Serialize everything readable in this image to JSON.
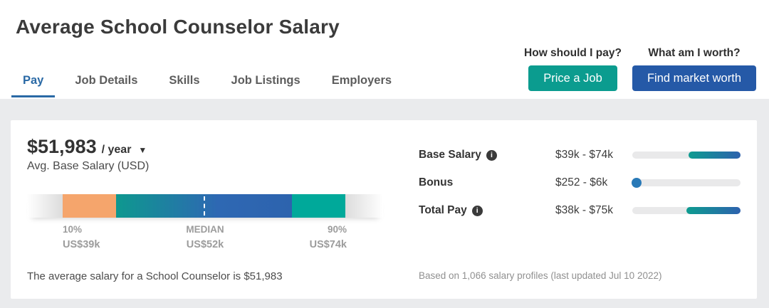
{
  "page": {
    "title": "Average School Counselor Salary"
  },
  "tabs": [
    {
      "label": "Pay",
      "active": true
    },
    {
      "label": "Job Details",
      "active": false
    },
    {
      "label": "Skills",
      "active": false
    },
    {
      "label": "Job Listings",
      "active": false
    },
    {
      "label": "Employers",
      "active": false
    }
  ],
  "header_actions": {
    "pay_question": "How should I pay?",
    "worth_question": "What am I worth?",
    "price_job_label": "Price a Job",
    "find_worth_label": "Find market worth"
  },
  "salary_summary": {
    "amount": "$51,983",
    "period": "/ year",
    "caption": "Avg. Base Salary (USD)"
  },
  "distribution": {
    "p10_label": "10%",
    "p10_value": "US$39k",
    "median_label": "MEDIAN",
    "median_value": "US$52k",
    "p90_label": "90%",
    "p90_value": "US$74k"
  },
  "pay_rows": [
    {
      "label": "Base Salary",
      "has_info": true,
      "range": "$39k - $74k"
    },
    {
      "label": "Bonus",
      "has_info": false,
      "range": "$252 - $6k"
    },
    {
      "label": "Total Pay",
      "has_info": true,
      "range": "$38k - $75k"
    }
  ],
  "footnotes": {
    "average_text": "The average salary for a School Counselor is $51,983",
    "profiles_text": "Based on 1,066 salary profiles (last updated Jul 10 2022)"
  },
  "icons": {
    "caret_down": "▼",
    "info": "i"
  },
  "colors": {
    "accent_teal": "#0b9c8f",
    "accent_blue": "#2559a7",
    "tab_active": "#2a69a5",
    "bar_orange": "#f5a56c",
    "bar_gradient_start": "#0e988f",
    "bar_gradient_end": "#2d63ae",
    "bar_teal": "#00a99a",
    "band_gray": "#eaebed"
  }
}
